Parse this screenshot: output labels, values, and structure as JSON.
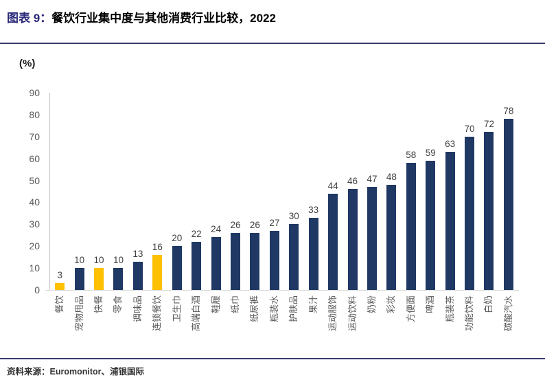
{
  "header": {
    "title_label": "图表 9：",
    "title_text": "餐饮行业集中度与其他消费行业比较，2022"
  },
  "chart_data": {
    "type": "bar",
    "title": "餐饮行业集中度与其他消费行业比较，2022",
    "unit_label": "(%)",
    "categories": [
      "餐饮",
      "宠物用品",
      "快餐",
      "零食",
      "调味品",
      "连锁餐饮",
      "卫生巾",
      "高端白酒",
      "鞋履",
      "纸巾",
      "纸尿裤",
      "瓶装水",
      "护肤品",
      "果汁",
      "运动服饰",
      "运动饮料",
      "奶粉",
      "彩妆",
      "方便面",
      "啤酒",
      "瓶装茶",
      "功能饮料",
      "白奶",
      "碳酸汽水"
    ],
    "values": [
      3,
      10,
      10,
      10,
      13,
      16,
      20,
      22,
      24,
      26,
      26,
      27,
      30,
      33,
      44,
      46,
      47,
      48,
      58,
      59,
      63,
      70,
      72,
      78
    ],
    "highlight_indices": [
      0,
      2,
      5
    ],
    "bar_color": "#1F3864",
    "highlight_color": "#FFC000",
    "ylim": [
      0,
      90
    ],
    "yticks": [
      0,
      10,
      20,
      30,
      40,
      50,
      60,
      70,
      80,
      90
    ],
    "grid": false,
    "value_labels": true,
    "legend": "none"
  },
  "footer": {
    "source_label": "资料来源：",
    "source_text": "Euromonitor、浦银国际"
  },
  "colors": {
    "accent_title": "#29297A",
    "rule": "#3A3A6E",
    "bar": "#1F3864",
    "highlight": "#FFC000",
    "tick_text": "#595959",
    "value_text": "#404040"
  }
}
